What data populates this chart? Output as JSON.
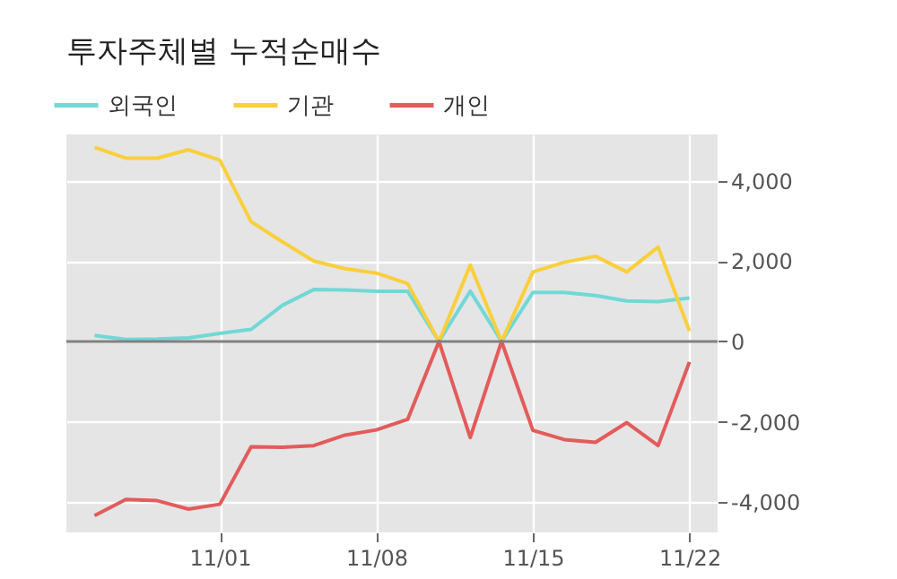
{
  "chart_data": {
    "type": "line",
    "title": "투자주체별 누적순매수",
    "categories": [
      null,
      null,
      null,
      null,
      "11/01",
      null,
      null,
      null,
      null,
      "11/08",
      null,
      null,
      null,
      null,
      "11/15",
      null,
      null,
      null,
      null,
      "11/22"
    ],
    "series": [
      {
        "name": "외국인",
        "color": "#72d8d6",
        "values": [
          150,
          50,
          60,
          90,
          200,
          300,
          900,
          1290,
          1280,
          1250,
          1250,
          0,
          1250,
          0,
          1220,
          1220,
          1140,
          1010,
          990,
          1080
        ]
      },
      {
        "name": "기관",
        "color": "#f9cf3c",
        "values": [
          4830,
          4560,
          4560,
          4770,
          4510,
          2980,
          2480,
          2000,
          1810,
          1700,
          1440,
          0,
          1900,
          0,
          1730,
          1970,
          2120,
          1730,
          2350,
          260
        ]
      },
      {
        "name": "개인",
        "color": "#e35b5b",
        "values": [
          -4330,
          -3930,
          -3960,
          -4170,
          -4050,
          -2620,
          -2630,
          -2590,
          -2330,
          -2200,
          -1940,
          0,
          -2390,
          0,
          -2210,
          -2440,
          -2510,
          -2020,
          -2590,
          -510
        ]
      }
    ],
    "ylim": [
      -4750,
      5150
    ],
    "yticks": [
      {
        "value": -4000,
        "label": "-4,000"
      },
      {
        "value": -2000,
        "label": "-2,000"
      },
      0,
      {
        "value": 2000,
        "label": "2,000"
      },
      {
        "value": 4000,
        "label": "4,000"
      }
    ],
    "ref_lines": [
      {
        "axis": "y",
        "value": 0,
        "color": "#808080"
      }
    ],
    "grid": true,
    "legend": "top",
    "marker": "none",
    "line_style": "solid"
  }
}
